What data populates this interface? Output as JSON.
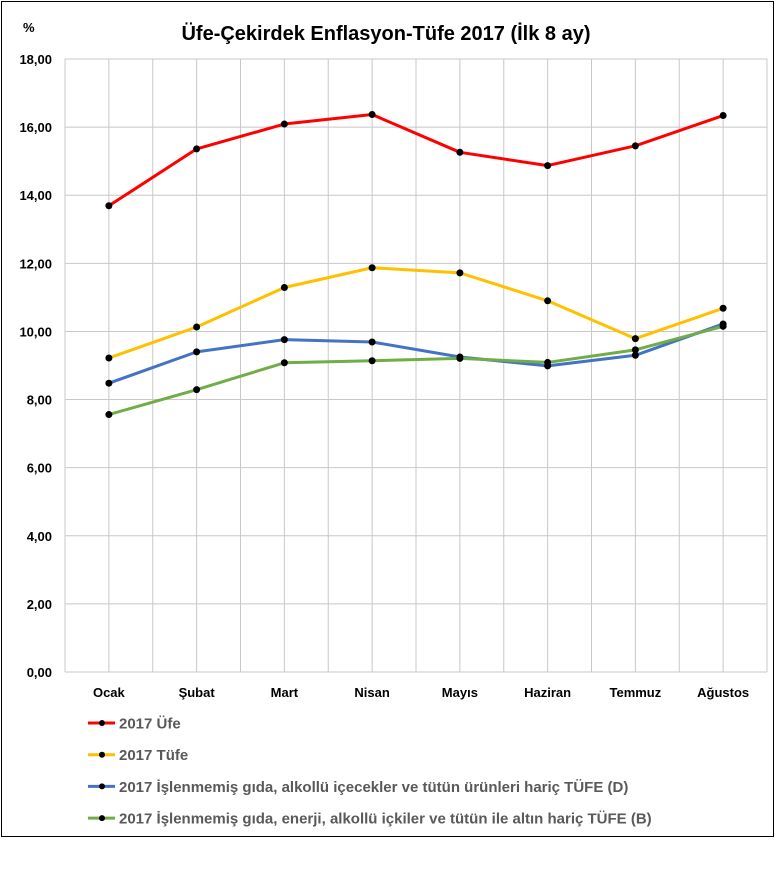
{
  "chart_data": {
    "type": "line",
    "title": "Üfe-Çekirdek Enflasyon-Tüfe 2017 (İlk 8 ay)",
    "unit_label": "%",
    "xlabel": "",
    "ylabel": "%",
    "ylim": [
      0,
      18
    ],
    "y_ticks": [
      "0,00",
      "2,00",
      "4,00",
      "6,00",
      "8,00",
      "10,00",
      "12,00",
      "14,00",
      "16,00",
      "18,00"
    ],
    "y_tick_values": [
      0,
      2,
      4,
      6,
      8,
      10,
      12,
      14,
      16,
      18
    ],
    "grid": true,
    "legend_position": "bottom",
    "categories": [
      "Ocak",
      "Şubat",
      "Mart",
      "Nisan",
      "Mayıs",
      "Haziran",
      "Temmuz",
      "Ağustos"
    ],
    "series": [
      {
        "name": "2017 Üfe",
        "color": "#FF0000",
        "values": [
          13.69,
          15.36,
          16.09,
          16.37,
          15.26,
          14.87,
          15.45,
          16.34
        ]
      },
      {
        "name": "2017 Tüfe",
        "color": "#FFC000",
        "values": [
          9.22,
          10.13,
          11.29,
          11.87,
          11.72,
          10.9,
          9.79,
          10.68
        ]
      },
      {
        "name": "2017 İşlenmemiş gıda, alkollü içecekler ve tütün ürünleri hariç TÜFE (D)",
        "color": "#4472C4",
        "values": [
          8.48,
          9.4,
          9.76,
          9.69,
          9.25,
          8.99,
          9.3,
          10.22
        ]
      },
      {
        "name": "2017 İşlenmemiş gıda, enerji, alkollü içkiler ve tütün ile altın hariç TÜFE (B)",
        "color": "#70AD47",
        "values": [
          7.56,
          8.29,
          9.08,
          9.14,
          9.21,
          9.09,
          9.46,
          10.15
        ]
      }
    ],
    "marker_color": "#000000"
  }
}
